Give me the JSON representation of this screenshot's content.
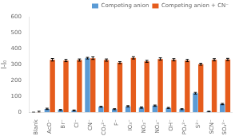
{
  "chart_data": {
    "type": "bar",
    "categories": [
      "Blank",
      "AcO⁻",
      "Br⁻",
      "Cl⁻",
      "CN⁻",
      "CO₃²⁻",
      "F⁻",
      "IO₃⁻",
      "NO₂⁻",
      "NO₃⁻",
      "OH⁻",
      "PO₄²⁻",
      "S²⁻",
      "SCN⁻",
      "SO₄²⁻"
    ],
    "series": [
      {
        "name": "Competing anion",
        "color": "#5b9bd5",
        "values": [
          0,
          22,
          15,
          12,
          340,
          35,
          20,
          38,
          30,
          42,
          28,
          20,
          120,
          5,
          52
        ],
        "errors": [
          0,
          4,
          3,
          3,
          5,
          3,
          3,
          4,
          4,
          4,
          3,
          3,
          5,
          2,
          4
        ]
      },
      {
        "name": "Competing anion + CN⁻",
        "color": "#e55c1c",
        "values": [
          2,
          330,
          325,
          328,
          340,
          328,
          312,
          342,
          320,
          335,
          330,
          325,
          302,
          330,
          332
        ],
        "errors": [
          5,
          8,
          7,
          7,
          8,
          7,
          6,
          7,
          6,
          7,
          7,
          7,
          6,
          7,
          7
        ]
      }
    ],
    "ylabel": "I-I₀",
    "ylim": [
      0,
      600
    ],
    "yticks": [
      0,
      100,
      200,
      300,
      400,
      500,
      600
    ],
    "grid": false,
    "legend": "upper right"
  }
}
